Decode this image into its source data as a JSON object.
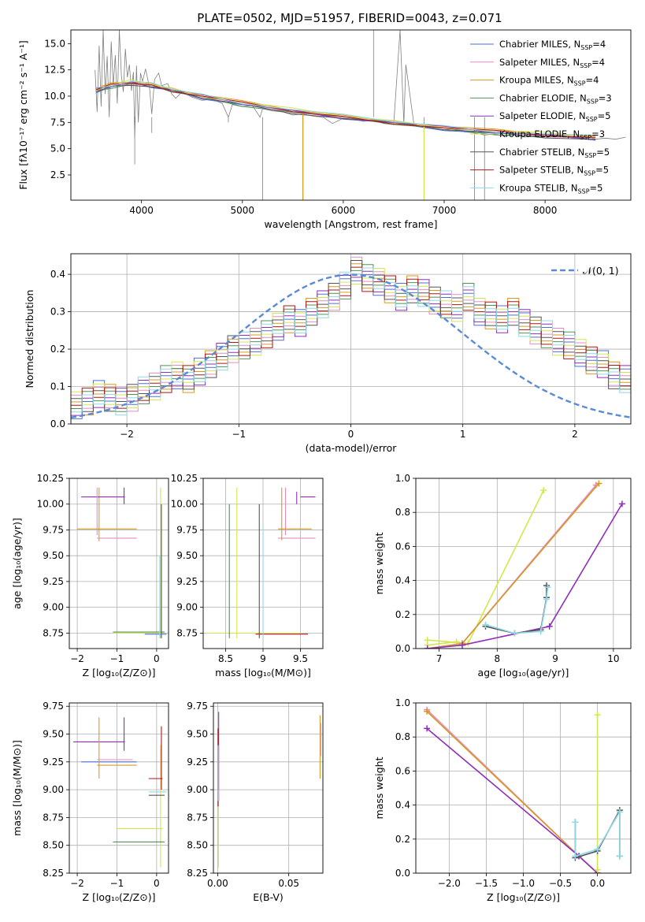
{
  "figure": {
    "title": "PLATE=0502, MJD=51957, FIBERID=0043, z=0.071"
  },
  "colors": {
    "s1": "#4f6fd6",
    "s2": "#e889c6",
    "s3": "#d69a20",
    "s4": "#4e9255",
    "s5": "#8f2fb8",
    "s6": "#d4e64f",
    "s7": "#555555",
    "s8": "#b01515",
    "s9": "#8fd8e4",
    "obs": "#7f7f7f",
    "gauss": "#5b8ad6",
    "grid": "#b0b0b0"
  },
  "chart_data": [
    {
      "id": "spectrum",
      "type": "line",
      "xlabel": "wavelength [Angstrom, rest frame]",
      "ylabel": "Flux [fλ10⁻¹⁷ erg cm⁻² s⁻¹ A⁻¹]",
      "xlim": [
        3300,
        8850
      ],
      "ylim": [
        0.1,
        16.3
      ],
      "xticks": [
        4000,
        5000,
        6000,
        7000,
        8000
      ],
      "yticks": [
        2.5,
        5.0,
        7.5,
        10.0,
        12.5,
        15.0
      ],
      "ytick_labels": [
        "2.5",
        "5.0",
        "7.5",
        "10.0",
        "12.5",
        "15.0"
      ],
      "legend": [
        {
          "label": "Chabrier MILES, N",
          "sub": "SSP",
          "tail": "=4",
          "c": "s1"
        },
        {
          "label": "Salpeter MILES, N",
          "sub": "SSP",
          "tail": "=4",
          "c": "s2"
        },
        {
          "label": "Kroupa MILES, N",
          "sub": "SSP",
          "tail": "=4",
          "c": "s3"
        },
        {
          "label": "Chabrier ELODIE, N",
          "sub": "SSP",
          "tail": "=3",
          "c": "s4"
        },
        {
          "label": "Salpeter ELODIE, N",
          "sub": "SSP",
          "tail": "=5",
          "c": "s5"
        },
        {
          "label": "Kroupa ELODIE, N",
          "sub": "SSP",
          "tail": "=3",
          "c": "s6"
        },
        {
          "label": "Chabrier STELIB, N",
          "sub": "SSP",
          "tail": "=5",
          "c": "s7"
        },
        {
          "label": "Salpeter STELIB, N",
          "sub": "SSP",
          "tail": "=5",
          "c": "s8"
        },
        {
          "label": "Kroupa STELIB, N",
          "sub": "SSP",
          "tail": "=5",
          "c": "s9"
        }
      ],
      "continuum": {
        "x": [
          3550,
          3700,
          3900,
          4100,
          4300,
          4600,
          5000,
          5500,
          6000,
          6500,
          7000,
          7500,
          8000,
          8500
        ],
        "y": [
          10.6,
          11.0,
          11.3,
          11.0,
          10.6,
          10.0,
          9.3,
          8.6,
          8.0,
          7.5,
          7.0,
          6.6,
          6.3,
          6.0
        ]
      },
      "observed": {
        "x": [
          3540,
          3560,
          3580,
          3600,
          3620,
          3640,
          3660,
          3680,
          3700,
          3720,
          3740,
          3760,
          3780,
          3800,
          3820,
          3840,
          3860,
          3880,
          3900,
          3920,
          3933,
          3950,
          3968,
          3990,
          4010,
          4040,
          4080,
          4102,
          4130,
          4170,
          4200,
          4260,
          4300,
          4340,
          4400,
          4500,
          4600,
          4700,
          4800,
          4861,
          4900,
          5000,
          5100,
          5175,
          5200,
          5300,
          5400,
          5500,
          5600,
          5700,
          5800,
          5893,
          6000,
          6100,
          6200,
          6300,
          6400,
          6500,
          6563,
          6600,
          6620,
          6700,
          6800,
          6900,
          7000,
          7100,
          7200,
          7300,
          7400,
          7500,
          7600,
          7700,
          7800,
          7900,
          8000,
          8100,
          8200,
          8300,
          8400,
          8500,
          8600,
          8700,
          8800
        ],
        "y": [
          12.5,
          8.5,
          14.8,
          9.0,
          16.3,
          10.2,
          13.8,
          8.0,
          15.2,
          11.0,
          13.9,
          9.3,
          16.3,
          12.0,
          10.4,
          14.5,
          11.8,
          13.0,
          10.5,
          12.3,
          6.0,
          12.9,
          7.5,
          12.2,
          11.4,
          12.6,
          10.8,
          8.3,
          11.6,
          12.2,
          11.0,
          11.2,
          10.2,
          9.8,
          10.4,
          9.9,
          9.6,
          9.7,
          9.3,
          8.0,
          9.2,
          9.0,
          9.1,
          8.0,
          8.8,
          8.6,
          8.5,
          8.2,
          8.3,
          8.1,
          8.0,
          7.4,
          7.9,
          7.8,
          7.6,
          7.7,
          7.4,
          7.3,
          16.3,
          7.4,
          13.0,
          7.3,
          7.0,
          6.9,
          6.8,
          6.9,
          6.6,
          6.5,
          6.3,
          6.4,
          6.2,
          6.3,
          6.1,
          6.3,
          6.0,
          6.3,
          6.1,
          6.0,
          6.2,
          5.9,
          6.0,
          5.9,
          6.1
        ]
      },
      "spikes": [
        {
          "x": 3933,
          "y": 3.5
        },
        {
          "x": 4102,
          "y": 6.5
        },
        {
          "x": 4861,
          "y": 7.5
        },
        {
          "x": 5200,
          "y": 0.1
        },
        {
          "x": 5600,
          "y": 0.1
        },
        {
          "x": 6300,
          "y": 16.3
        },
        {
          "x": 6800,
          "y": 0.1
        },
        {
          "x": 7300,
          "y": 0.1
        },
        {
          "x": 7400,
          "y": 0.1
        }
      ]
    },
    {
      "id": "residuals",
      "type": "bar",
      "xlabel": "(data-model)/error",
      "ylabel": "Normed distribution",
      "xlim": [
        -2.5,
        2.5
      ],
      "ylim": [
        0,
        0.455
      ],
      "xticks": [
        -2,
        -1,
        0,
        1,
        2
      ],
      "yticks": [
        0.0,
        0.1,
        0.2,
        0.3,
        0.4
      ],
      "ytick_labels": [
        "0.0",
        "0.1",
        "0.2",
        "0.3",
        "0.4"
      ],
      "bin_width": 0.1,
      "bin_start": -2.5,
      "legend_label": "𝒩(0, 1)",
      "hist_base": [
        0.05,
        0.06,
        0.08,
        0.07,
        0.06,
        0.07,
        0.09,
        0.1,
        0.12,
        0.13,
        0.12,
        0.14,
        0.16,
        0.18,
        0.2,
        0.21,
        0.22,
        0.24,
        0.26,
        0.28,
        0.27,
        0.3,
        0.32,
        0.34,
        0.37,
        0.41,
        0.39,
        0.38,
        0.36,
        0.34,
        0.36,
        0.35,
        0.33,
        0.32,
        0.31,
        0.34,
        0.3,
        0.29,
        0.28,
        0.3,
        0.27,
        0.25,
        0.24,
        0.22,
        0.21,
        0.19,
        0.17,
        0.16,
        0.13,
        0.12,
        0.1,
        0.09,
        0.08,
        0.07,
        0.06,
        0.06,
        0.05,
        0.05,
        0.04,
        0.04,
        0.03
      ]
    },
    {
      "id": "age_vs_Z",
      "type": "scatter",
      "xlabel": "Z [log₁₀(Z/Z⊙)]",
      "ylabel": "age  [log₁₀(age/yr)]",
      "xlim": [
        -2.2,
        0.3
      ],
      "ylim": [
        8.6,
        10.25
      ],
      "xticks": [
        -2,
        -1,
        0
      ],
      "yticks": [
        8.75,
        9.0,
        9.25,
        9.5,
        9.75,
        10.0,
        10.25
      ],
      "ytick_labels": [
        "8.75",
        "9.00",
        "9.25",
        "9.50",
        "9.75",
        "10.00",
        "10.25"
      ],
      "crosses": [
        {
          "x": [
            -2.0,
            -0.5
          ],
          "y": 9.76,
          "c": "s3"
        },
        {
          "x": -1.45,
          "y": [
            9.64,
            10.16
          ],
          "c": "s3"
        },
        {
          "x": [
            -1.9,
            -0.8
          ],
          "y": 10.07,
          "c": "s5"
        },
        {
          "x": -0.82,
          "y": [
            10.0,
            10.16
          ],
          "c": "s5"
        },
        {
          "x": [
            -1.5,
            -0.5
          ],
          "y": 9.67,
          "c": "s2"
        },
        {
          "x": -1.5,
          "y": [
            9.7,
            10.16
          ],
          "c": "s2"
        },
        {
          "x": [
            -1.1,
            0.15
          ],
          "y": 8.75,
          "c": "s6"
        },
        {
          "x": 0.1,
          "y": [
            8.7,
            10.16
          ],
          "c": "s6"
        },
        {
          "x": [
            -1.1,
            0.2
          ],
          "y": 8.76,
          "c": "s4"
        },
        {
          "x": 0.12,
          "y": [
            8.7,
            10.0
          ],
          "c": "s7"
        },
        {
          "x": [
            -0.3,
            0.25
          ],
          "y": 8.74,
          "c": "s1"
        },
        {
          "x": 0.08,
          "y": [
            8.7,
            9.5
          ],
          "c": "s9"
        }
      ]
    },
    {
      "id": "age_vs_mass",
      "type": "scatter",
      "xlabel": "mass [log₁₀(M/M⊙)]",
      "ylabel": "",
      "xlim": [
        8.2,
        9.8
      ],
      "ylim": [
        8.6,
        10.25
      ],
      "xticks": [
        8.5,
        9.0,
        9.5
      ],
      "yticks": [
        8.75,
        9.0,
        9.25,
        9.5,
        9.75,
        10.0,
        10.25
      ],
      "ytick_labels": [
        "8.75",
        "9.00",
        "9.25",
        "9.50",
        "9.75",
        "10.00",
        "10.25"
      ],
      "crosses": [
        {
          "x": [
            9.2,
            9.7
          ],
          "y": 9.67,
          "c": "s2"
        },
        {
          "x": 9.3,
          "y": [
            9.7,
            10.16
          ],
          "c": "s2"
        },
        {
          "x": [
            9.2,
            9.65
          ],
          "y": 9.76,
          "c": "s3"
        },
        {
          "x": 9.25,
          "y": [
            9.65,
            10.16
          ],
          "c": "s3"
        },
        {
          "x": [
            9.5,
            9.7
          ],
          "y": 10.07,
          "c": "s5"
        },
        {
          "x": 9.45,
          "y": [
            10.0,
            10.12
          ],
          "c": "s5"
        },
        {
          "x": 8.65,
          "y": [
            8.7,
            10.16
          ],
          "c": "s6"
        },
        {
          "x": [
            8.25,
            9.5
          ],
          "y": 8.75,
          "c": "s6"
        },
        {
          "x": 8.55,
          "y": [
            8.7,
            10.0
          ],
          "c": "s4"
        },
        {
          "x": [
            8.9,
            9.6
          ],
          "y": 8.74,
          "c": "s8"
        },
        {
          "x": 8.95,
          "y": [
            8.7,
            10.0
          ],
          "c": "s7"
        },
        {
          "x": 9.0,
          "y": [
            8.7,
            9.8
          ],
          "c": "s9"
        }
      ]
    },
    {
      "id": "weight_vs_age",
      "type": "line",
      "xlabel": "age  [log₁₀(age/yr)]",
      "ylabel": "mass weight",
      "xlim": [
        6.6,
        10.3
      ],
      "ylim": [
        0,
        1.0
      ],
      "xticks": [
        7,
        8,
        9,
        10
      ],
      "yticks": [
        0.0,
        0.2,
        0.4,
        0.6,
        0.8,
        1.0
      ],
      "ytick_labels": [
        "0.0",
        "0.2",
        "0.4",
        "0.6",
        "0.8",
        "1.0"
      ],
      "series": [
        {
          "c": "s6",
          "x": [
            6.8,
            7.5,
            8.8
          ],
          "y": [
            0.05,
            0.03,
            0.93
          ]
        },
        {
          "c": "s6",
          "x": [
            6.8,
            7.3
          ],
          "y": [
            0.02,
            0.04
          ]
        },
        {
          "c": "s2",
          "x": [
            6.8,
            7.4,
            9.7
          ],
          "y": [
            0.0,
            0.03,
            0.96
          ]
        },
        {
          "c": "s3",
          "x": [
            6.8,
            7.4,
            9.75
          ],
          "y": [
            0.0,
            0.03,
            0.97
          ]
        },
        {
          "c": "s5",
          "x": [
            6.8,
            7.4,
            8.9,
            10.15
          ],
          "y": [
            0.0,
            0.02,
            0.13,
            0.85
          ]
        },
        {
          "c": "s7",
          "x": [
            7.8,
            8.3,
            8.75,
            8.85,
            8.85
          ],
          "y": [
            0.13,
            0.09,
            0.11,
            0.3,
            0.37
          ]
        },
        {
          "c": "s9",
          "x": [
            7.8,
            8.3,
            8.75,
            8.85,
            8.87
          ],
          "y": [
            0.14,
            0.09,
            0.1,
            0.29,
            0.36
          ]
        }
      ]
    },
    {
      "id": "mass_vs_Z",
      "type": "scatter",
      "xlabel": "Z [log₁₀(Z/Z⊙)]",
      "ylabel": "mass [log₁₀(M/M⊙)]",
      "xlim": [
        -2.2,
        0.3
      ],
      "ylim": [
        8.25,
        9.78
      ],
      "xticks": [
        -2,
        -1,
        0
      ],
      "yticks": [
        8.25,
        8.5,
        8.75,
        9.0,
        9.25,
        9.5,
        9.75
      ],
      "ytick_labels": [
        "8.25",
        "8.50",
        "8.75",
        "9.00",
        "9.25",
        "9.50",
        "9.75"
      ],
      "crosses": [
        {
          "x": [
            -2.1,
            -0.8
          ],
          "y": 9.43,
          "c": "s5"
        },
        {
          "x": -0.82,
          "y": [
            9.35,
            9.65
          ],
          "c": "s5"
        },
        {
          "x": [
            -1.9,
            -0.5
          ],
          "y": 9.25,
          "c": "s1"
        },
        {
          "x": -1.45,
          "y": [
            9.1,
            9.65
          ],
          "c": "s3"
        },
        {
          "x": [
            -1.5,
            -0.5
          ],
          "y": 9.22,
          "c": "s3"
        },
        {
          "x": [
            -1.5,
            -0.6
          ],
          "y": 9.27,
          "c": "s2"
        },
        {
          "x": [
            -1.0,
            0.15
          ],
          "y": 8.65,
          "c": "s6"
        },
        {
          "x": 0.1,
          "y": [
            8.3,
            9.4
          ],
          "c": "s6"
        },
        {
          "x": [
            -1.1,
            0.2
          ],
          "y": 8.53,
          "c": "s4"
        },
        {
          "x": [
            -0.2,
            0.15
          ],
          "y": 9.1,
          "c": "s8"
        },
        {
          "x": 0.12,
          "y": [
            9.0,
            9.57
          ],
          "c": "s8"
        },
        {
          "x": [
            -0.2,
            0.2
          ],
          "y": 8.95,
          "c": "s7"
        },
        {
          "x": [
            -0.2,
            0.25
          ],
          "y": 8.98,
          "c": "s9"
        }
      ]
    },
    {
      "id": "mass_vs_ebv",
      "type": "scatter",
      "xlabel": "E(B-V)",
      "ylabel": "",
      "xlim": [
        -0.003,
        0.074
      ],
      "ylim": [
        8.25,
        9.78
      ],
      "xticks": [
        0.0,
        0.05
      ],
      "xtick_labels": [
        "0.00",
        "0.05"
      ],
      "yticks": [
        8.25,
        8.5,
        8.75,
        9.0,
        9.25,
        9.5,
        9.75
      ],
      "ytick_labels": [
        "8.25",
        "8.50",
        "8.75",
        "9.00",
        "9.25",
        "9.50",
        "9.75"
      ],
      "crosses": [
        {
          "x": 0.0007,
          "y": [
            8.9,
            9.7
          ],
          "c": "s5"
        },
        {
          "x": 0.0005,
          "y": [
            8.3,
            9.0
          ],
          "c": "s6"
        },
        {
          "x": 0.0003,
          "y": [
            8.85,
            9.55
          ],
          "c": "s8"
        },
        {
          "x": 0.0004,
          "y": [
            8.9,
            9.4
          ],
          "c": "s9"
        },
        {
          "x": 0.072,
          "y": [
            9.1,
            9.67
          ],
          "c": "s3"
        },
        {
          "x": 0.0725,
          "y": [
            9.3,
            9.6
          ],
          "c": "s2"
        }
      ]
    },
    {
      "id": "weight_vs_Z",
      "type": "line",
      "xlabel": "Z [log₁₀(Z/Z⊙)]",
      "ylabel": "mass weight",
      "xlim": [
        -2.45,
        0.45
      ],
      "ylim": [
        0,
        1.0
      ],
      "xticks": [
        -2.0,
        -1.5,
        -1.0,
        -0.5,
        0.0
      ],
      "xtick_labels": [
        "−2.0",
        "−1.5",
        "−1.0",
        "−0.5",
        "0.0"
      ],
      "yticks": [
        0.0,
        0.2,
        0.4,
        0.6,
        0.8,
        1.0
      ],
      "ytick_labels": [
        "0.0",
        "0.2",
        "0.4",
        "0.6",
        "0.8",
        "1.0"
      ],
      "series": [
        {
          "c": "s2",
          "x": [
            -2.3,
            -0.25,
            0.0
          ],
          "y": [
            0.96,
            0.1,
            0.0
          ]
        },
        {
          "c": "s3",
          "x": [
            -2.3,
            -0.25,
            0.0
          ],
          "y": [
            0.95,
            0.1,
            0.0
          ]
        },
        {
          "c": "s5",
          "x": [
            -2.3,
            -0.25,
            0.0
          ],
          "y": [
            0.85,
            0.1,
            0.0
          ]
        },
        {
          "c": "s6",
          "x": [
            0.0,
            0.0
          ],
          "y": [
            0.93,
            0.02
          ]
        },
        {
          "c": "s7",
          "x": [
            -0.3,
            -0.3,
            0.0,
            0.3,
            0.3
          ],
          "y": [
            0.3,
            0.09,
            0.13,
            0.37,
            0.1
          ]
        },
        {
          "c": "s9",
          "x": [
            -0.3,
            -0.3,
            0.0,
            0.3,
            0.3
          ],
          "y": [
            0.3,
            0.1,
            0.14,
            0.36,
            0.1
          ]
        }
      ]
    }
  ]
}
